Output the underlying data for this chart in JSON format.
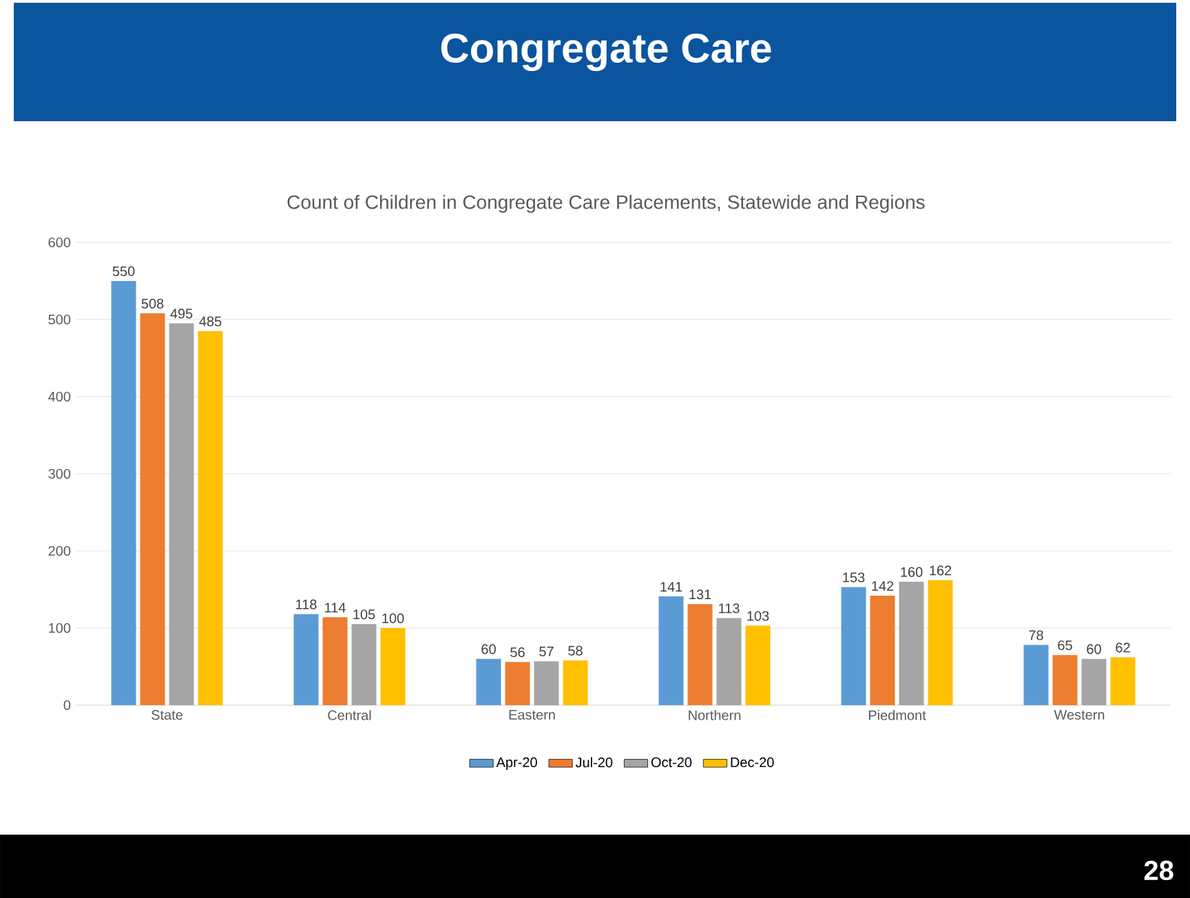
{
  "chart_data": {
    "type": "bar",
    "title": "Congregate Care",
    "subtitle": "Count of Children in Congregate Care Placements, Statewide and Regions",
    "categories": [
      "State",
      "Central",
      "Eastern",
      "Northern",
      "Piedmont",
      "Western"
    ],
    "series": [
      {
        "name": "Apr-20",
        "color": "#5b9bd5",
        "values": [
          550,
          118,
          60,
          141,
          153,
          78
        ]
      },
      {
        "name": "Jul-20",
        "color": "#ed7d31",
        "values": [
          508,
          114,
          56,
          131,
          142,
          65
        ]
      },
      {
        "name": "Oct-20",
        "color": "#a5a5a5",
        "values": [
          495,
          105,
          57,
          113,
          160,
          60
        ]
      },
      {
        "name": "Dec-20",
        "color": "#ffc000",
        "values": [
          485,
          100,
          58,
          103,
          162,
          62
        ]
      }
    ],
    "ylim": [
      0,
      600
    ],
    "yticks": [
      0,
      100,
      200,
      300,
      400,
      500,
      600
    ],
    "grid": "y",
    "legend": "bottom",
    "data_labels": true,
    "annotations": [
      "28"
    ]
  }
}
